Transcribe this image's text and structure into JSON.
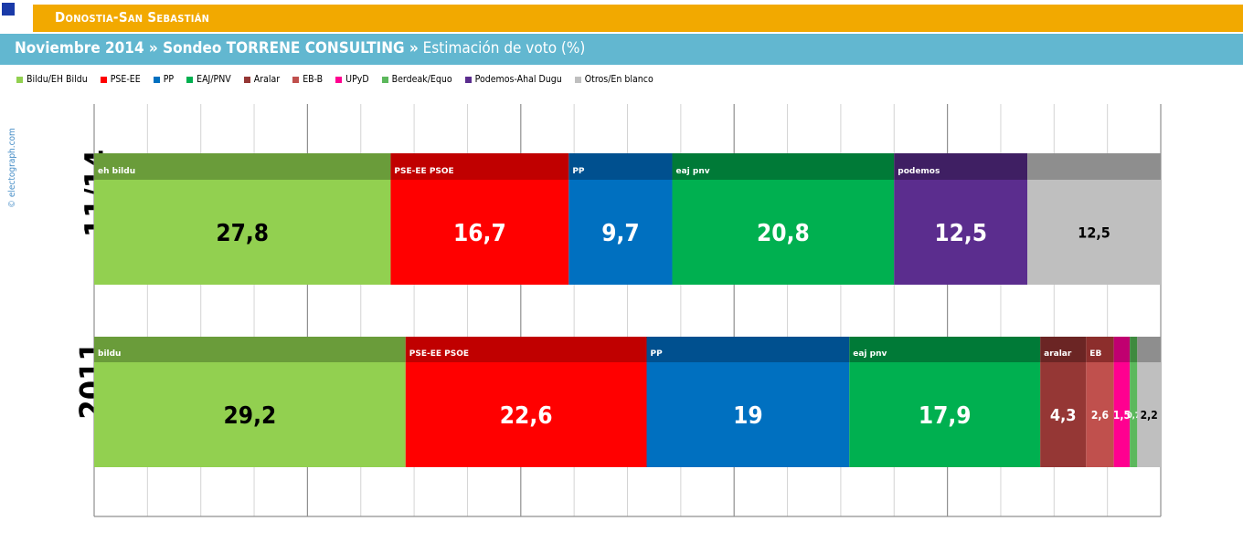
{
  "header": {
    "title": "Donostia-San Sebastián",
    "subtitle_bold": "Noviembre 2014 » Sondeo TORRENE CONSULTING »",
    "subtitle_rest": " Estimación de voto (%)"
  },
  "watermark": "© electograph.com",
  "legend": [
    {
      "label": "Bildu/EH Bildu",
      "color": "#92d050"
    },
    {
      "label": "PSE-EE",
      "color": "#ff0000"
    },
    {
      "label": "PP",
      "color": "#0070c0"
    },
    {
      "label": "EAJ/PNV",
      "color": "#00b050"
    },
    {
      "label": "Aralar",
      "color": "#953735"
    },
    {
      "label": "EB-B",
      "color": "#c0504d"
    },
    {
      "label": "UPyD",
      "color": "#ff0090"
    },
    {
      "label": "Berdeak/Equo",
      "color": "#5cb85c"
    },
    {
      "label": "Podemos-Ahal Dugu",
      "color": "#5b2d8e"
    },
    {
      "label": "Otros/En blanco",
      "color": "#bfbfbf"
    }
  ],
  "chart_data": {
    "type": "bar",
    "orientation": "horizontal-stacked",
    "xlim": [
      0,
      100
    ],
    "rows": [
      {
        "label": "11/14",
        "segments": [
          {
            "party": "Bildu/EH Bildu",
            "value": 27.8,
            "text": "27,8",
            "color": "#92d050",
            "band": "#6a9c3a",
            "logo": "eh bildu"
          },
          {
            "party": "PSE-EE",
            "value": 16.7,
            "text": "16,7",
            "color": "#ff0000",
            "band": "#c00000",
            "logo": "PSE-EE PSOE"
          },
          {
            "party": "PP",
            "value": 9.7,
            "text": "9,7",
            "color": "#0070c0",
            "band": "#00508f",
            "logo": "PP"
          },
          {
            "party": "EAJ/PNV",
            "value": 20.8,
            "text": "20,8",
            "color": "#00b050",
            "band": "#007a37",
            "logo": "eaj pnv"
          },
          {
            "party": "Podemos-Ahal Dugu",
            "value": 12.5,
            "text": "12,5",
            "color": "#5b2d8e",
            "band": "#3f1f63",
            "logo": "podemos"
          },
          {
            "party": "Otros/En blanco",
            "value": 12.5,
            "text": "12,5",
            "color": "#bfbfbf",
            "band": "#8e8e8e",
            "logo": ""
          }
        ]
      },
      {
        "label": "2011",
        "segments": [
          {
            "party": "Bildu/EH Bildu",
            "value": 29.2,
            "text": "29,2",
            "color": "#92d050",
            "band": "#6a9c3a",
            "logo": "bildu"
          },
          {
            "party": "PSE-EE",
            "value": 22.6,
            "text": "22,6",
            "color": "#ff0000",
            "band": "#c00000",
            "logo": "PSE-EE PSOE"
          },
          {
            "party": "PP",
            "value": 19,
            "text": "19",
            "color": "#0070c0",
            "band": "#00508f",
            "logo": "PP"
          },
          {
            "party": "EAJ/PNV",
            "value": 17.9,
            "text": "17,9",
            "color": "#00b050",
            "band": "#007a37",
            "logo": "eaj pnv"
          },
          {
            "party": "Aralar",
            "value": 4.3,
            "text": "4,3",
            "color": "#953735",
            "band": "#6b2524",
            "logo": "aralar"
          },
          {
            "party": "EB-B",
            "value": 2.6,
            "text": "2,6",
            "color": "#c0504d",
            "band": "#8c2e2c",
            "logo": "EB"
          },
          {
            "party": "UPyD",
            "value": 1.5,
            "text": "1,5",
            "color": "#ff0090",
            "band": "#c00070",
            "logo": ""
          },
          {
            "party": "Berdeak/Equo",
            "value": 0.7,
            "text": "0,7",
            "color": "#5cb85c",
            "band": "#3f8a3f",
            "logo": ""
          },
          {
            "party": "Otros/En blanco",
            "value": 2.2,
            "text": "2,2",
            "color": "#bfbfbf",
            "band": "#8e8e8e",
            "logo": ""
          }
        ]
      }
    ]
  }
}
